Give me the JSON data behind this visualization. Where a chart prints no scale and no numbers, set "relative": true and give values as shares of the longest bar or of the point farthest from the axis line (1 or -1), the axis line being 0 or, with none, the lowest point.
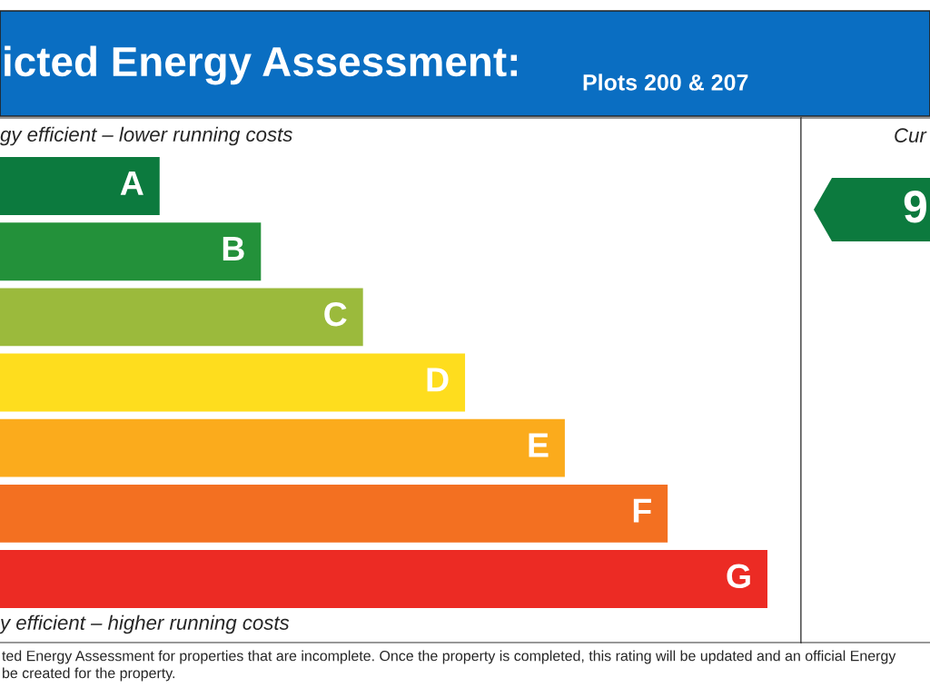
{
  "chart_data": {
    "type": "bar",
    "orientation": "horizontal",
    "relative": true,
    "title": "icted Energy Assessment:",
    "subtitle": "Plots 200 & 207",
    "categories": [
      "A",
      "B",
      "C",
      "D",
      "E",
      "F",
      "G"
    ],
    "values": [
      0.208,
      0.34,
      0.473,
      0.606,
      0.736,
      0.87,
      1
    ],
    "colors": [
      "#0c7a3e",
      "#23913a",
      "#9bba3c",
      "#fedd1e",
      "#fbab1c",
      "#f37021",
      "#ec2b24"
    ],
    "annotations": [
      "gy efficient – lower running costs",
      "y efficient – higher running costs",
      "Cur",
      "9",
      "ted Energy Assessment for properties that are incomplete. Once the property is completed, this rating will be updated and an official Energy",
      "be created for the property."
    ]
  }
}
